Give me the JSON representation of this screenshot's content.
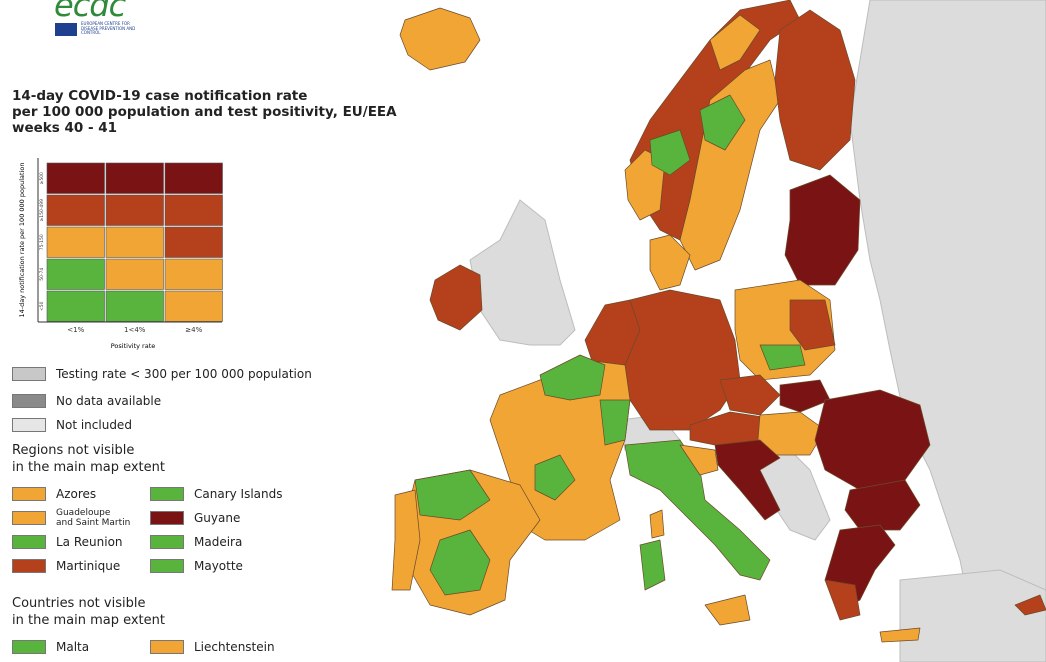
{
  "logo": {
    "wordmark": "ecdc",
    "subtitle": "EUROPEAN CENTRE FOR DISEASE PREVENTION AND CONTROL"
  },
  "title": [
    "14-day COVID-19 case notification rate",
    "per 100 000 population and test positivity, EU/EEA",
    "weeks 40 - 41"
  ],
  "matrix": {
    "y_axis_label": "14-day notification rate per 100 000 population",
    "x_axis_label": "Positivity rate",
    "x_ticks": [
      "<1%",
      "1<4%",
      "≥4%"
    ],
    "y_ticks": [
      "≥500",
      "≥150-499",
      "75-150",
      "50-74",
      "<50"
    ],
    "cells": [
      [
        "#7a1414",
        "#7a1414",
        "#7a1414"
      ],
      [
        "#b5401c",
        "#b5401c",
        "#b5401c"
      ],
      [
        "#f0a535",
        "#f0a535",
        "#b5401c"
      ],
      [
        "#58b43c",
        "#f0a535",
        "#f0a535"
      ],
      [
        "#58b43c",
        "#58b43c",
        "#f0a535"
      ]
    ]
  },
  "legend": {
    "testing_rate": "Testing rate < 300 per 100 000 population",
    "no_data": "No data available",
    "not_included": "Not included",
    "regions_heading": [
      "Regions not visible",
      "in the main map extent"
    ],
    "regions": [
      {
        "label": "Azores",
        "color": "#f0a535"
      },
      {
        "label": "Canary Islands",
        "color": "#58b43c"
      },
      {
        "label": "Guadeloupe and Saint Martin",
        "color": "#f0a535"
      },
      {
        "label": "Guyane",
        "color": "#7a1414"
      },
      {
        "label": "La Reunion",
        "color": "#58b43c"
      },
      {
        "label": "Madeira",
        "color": "#58b43c"
      },
      {
        "label": "Martinique",
        "color": "#b5401c"
      },
      {
        "label": "Mayotte",
        "color": "#58b43c"
      }
    ],
    "countries_heading": [
      "Countries not visible",
      "in the main map extent"
    ],
    "countries": [
      {
        "label": "Malta",
        "color": "#58b43c"
      },
      {
        "label": "Liechtenstein",
        "color": "#f0a535"
      }
    ]
  },
  "colors": {
    "dark_red": "#7a1414",
    "red": "#b5401c",
    "orange": "#f0a535",
    "green": "#58b43c",
    "grey": "#c8c8c8",
    "dark_grey": "#8a8a8a",
    "light_grey": "#e6e6e6",
    "sea": "#ffffff"
  }
}
